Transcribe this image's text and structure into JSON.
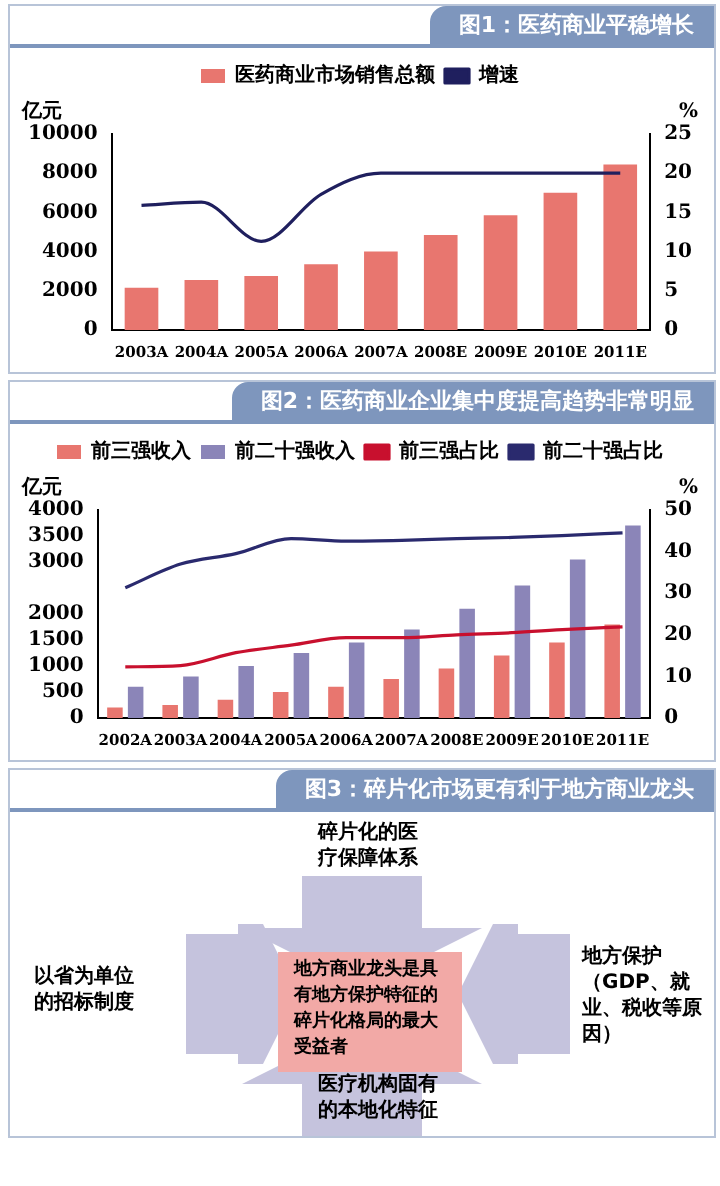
{
  "chart_data": [
    {
      "type": "bar",
      "title": "图1：医药商业平稳增长",
      "ylabel": "亿元",
      "y2label": "%",
      "categories": [
        "2003A",
        "2004A",
        "2005A",
        "2006A",
        "2007A",
        "2008E",
        "2009E",
        "2010E",
        "2011E"
      ],
      "series": [
        {
          "name": "医药商业市场销售总额",
          "color": "#e8766f",
          "values": [
            2150,
            2550,
            2750,
            3350,
            4000,
            4850,
            5850,
            7000,
            8450
          ]
        },
        {
          "name": "增速",
          "type": "line",
          "axis": "y2",
          "color": "#1f1f5e",
          "values": [
            15.9,
            16.3,
            11.3,
            17.3,
            20,
            20,
            20,
            20,
            20
          ]
        }
      ],
      "ylim": [
        0,
        10000
      ],
      "yticks": [
        0,
        2000,
        4000,
        6000,
        8000,
        10000
      ],
      "y2lim": [
        0,
        25
      ],
      "y2ticks": [
        0,
        5,
        10,
        15,
        20,
        25
      ],
      "grid": false,
      "legend": "top",
      "marker": "none"
    },
    {
      "type": "bar",
      "title": "图2：医药商业企业集中度提高趋势非常明显",
      "ylabel": "亿元",
      "y2label": "%",
      "categories": [
        "2002A",
        "2003A",
        "2004A",
        "2005A",
        "2006A",
        "2007A",
        "2008E",
        "2009E",
        "2010E",
        "2011E"
      ],
      "series": [
        {
          "name": "前三强收入",
          "color": "#e8766f",
          "values": [
            200,
            250,
            350,
            500,
            600,
            750,
            950,
            1200,
            1450,
            1800
          ]
        },
        {
          "name": "前二十强收入",
          "color": "#8b85b8",
          "values": [
            600,
            800,
            1000,
            1250,
            1450,
            1700,
            2100,
            2550,
            3050,
            3700
          ]
        },
        {
          "name": "前三强占比",
          "type": "line",
          "axis": "y2",
          "color": "#c8102e",
          "values": [
            12.3,
            12.6,
            15.7,
            17.5,
            19.3,
            19.3,
            20,
            20.5,
            21.3,
            21.9
          ]
        },
        {
          "name": "前二十强占比",
          "type": "line",
          "axis": "y2",
          "color": "#2a2a6e",
          "values": [
            31.3,
            37,
            39.5,
            43.1,
            42.5,
            42.7,
            43.1,
            43.4,
            43.9,
            44.5
          ]
        }
      ],
      "ylim": [
        0,
        4000
      ],
      "yticks": [
        0,
        500,
        1000,
        1500,
        2000,
        3000,
        3500,
        4000
      ],
      "y2lim": [
        0,
        50
      ],
      "y2ticks": [
        0,
        10,
        20,
        30,
        40,
        50
      ],
      "grid": false,
      "legend": "top",
      "marker": "none"
    },
    {
      "type": "other",
      "title": "图3：碎片化市场更有利于地方商业龙头",
      "annotations": [
        "碎片化的医疗保障体系",
        "以省为单位的招标制度",
        "地方商业龙头是具有地方保护特征的碎片化格局的最大受益者",
        "地方保护（GDP、就业、税收等原因）",
        "医疗机构固有的本地化特征"
      ]
    }
  ]
}
